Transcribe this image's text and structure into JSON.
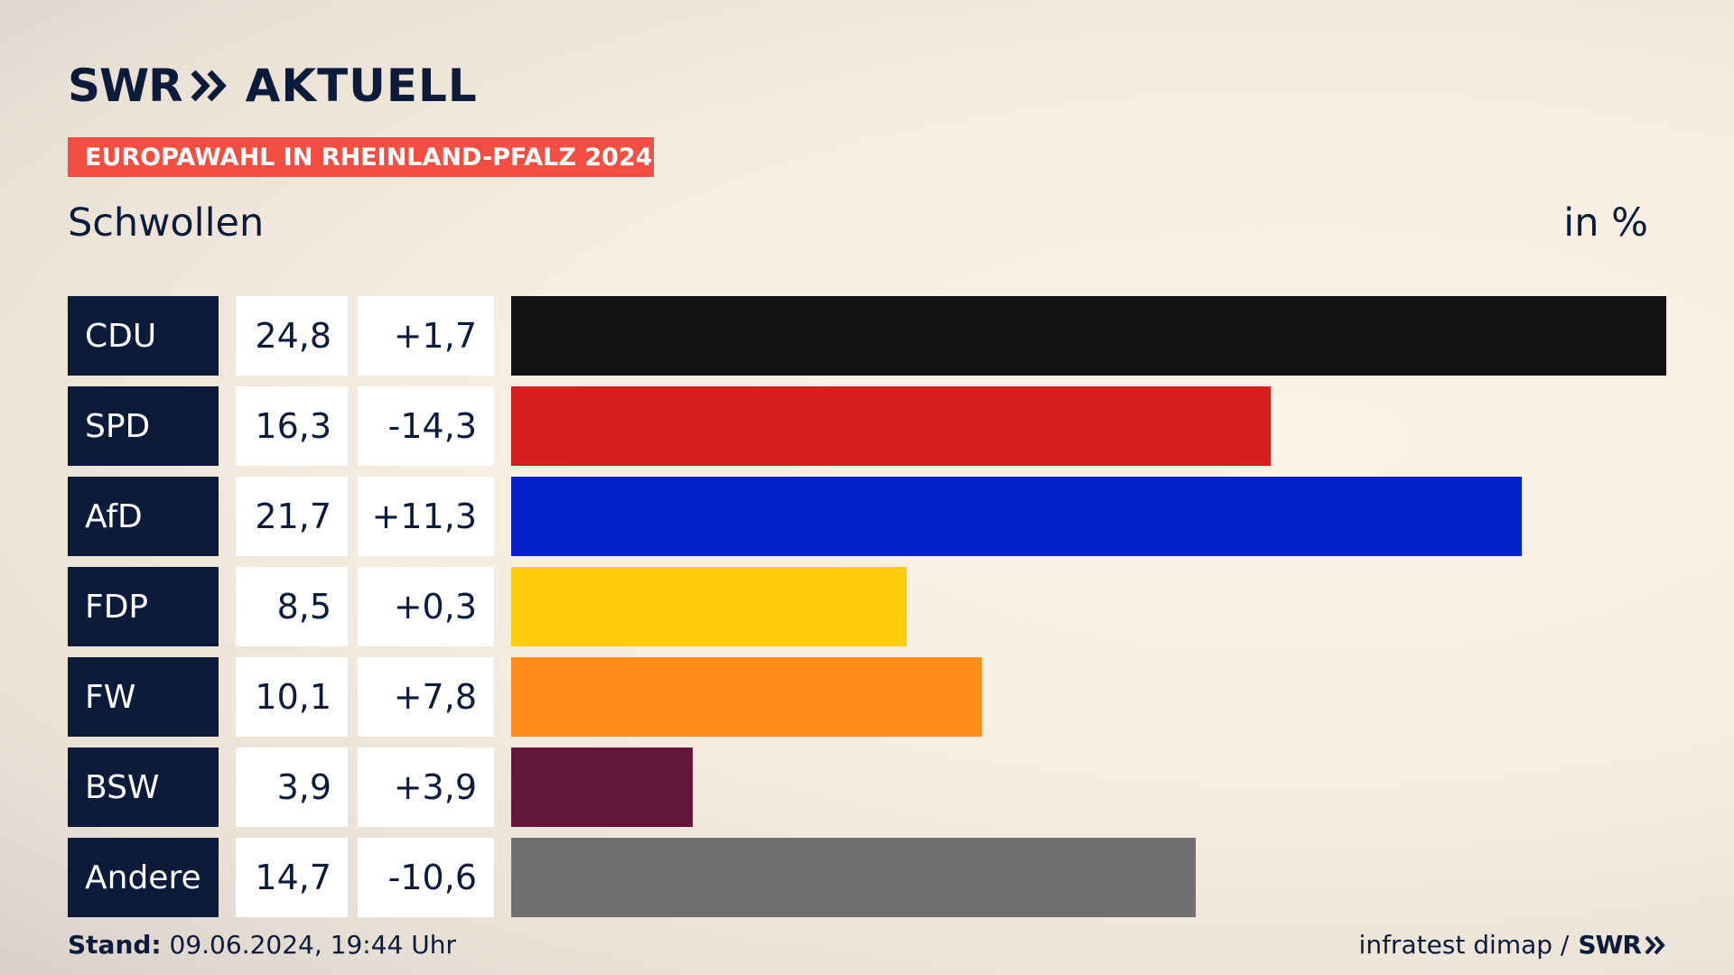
{
  "header": {
    "brand": "SWR",
    "brand_suffix": "AKTUELL",
    "tag": "EUROPAWAHL IN RHEINLAND-PFALZ 2024",
    "place": "Schwollen",
    "unit": "in %"
  },
  "footer": {
    "stand_label": "Stand:",
    "stand_value": "09.06.2024, 19:44 Uhr",
    "source": "infratest dimap /",
    "source_brand": "SWR"
  },
  "colors": {
    "navy": "#0d1b3a",
    "tag_red": "#f24e42"
  },
  "chart_data": {
    "type": "bar",
    "orientation": "horizontal",
    "categories": [
      "CDU",
      "SPD",
      "AfD",
      "FDP",
      "FW",
      "BSW",
      "Andere"
    ],
    "values": [
      24.8,
      16.3,
      21.7,
      8.5,
      10.1,
      3.9,
      14.7
    ],
    "value_labels": [
      "24,8",
      "16,3",
      "21,7",
      "8,5",
      "10,1",
      "3,9",
      "14,7"
    ],
    "changes": [
      "+1,7",
      "-14,3",
      "+11,3",
      "+0,3",
      "+7,8",
      "+3,9",
      "-10,6"
    ],
    "colors": [
      "#141414",
      "#d61f1f",
      "#0020c8",
      "#ffcc0a",
      "#ff8c19",
      "#63163c",
      "#707073"
    ],
    "xlim": [
      0,
      24.8
    ],
    "grid": false,
    "legend": "none"
  }
}
